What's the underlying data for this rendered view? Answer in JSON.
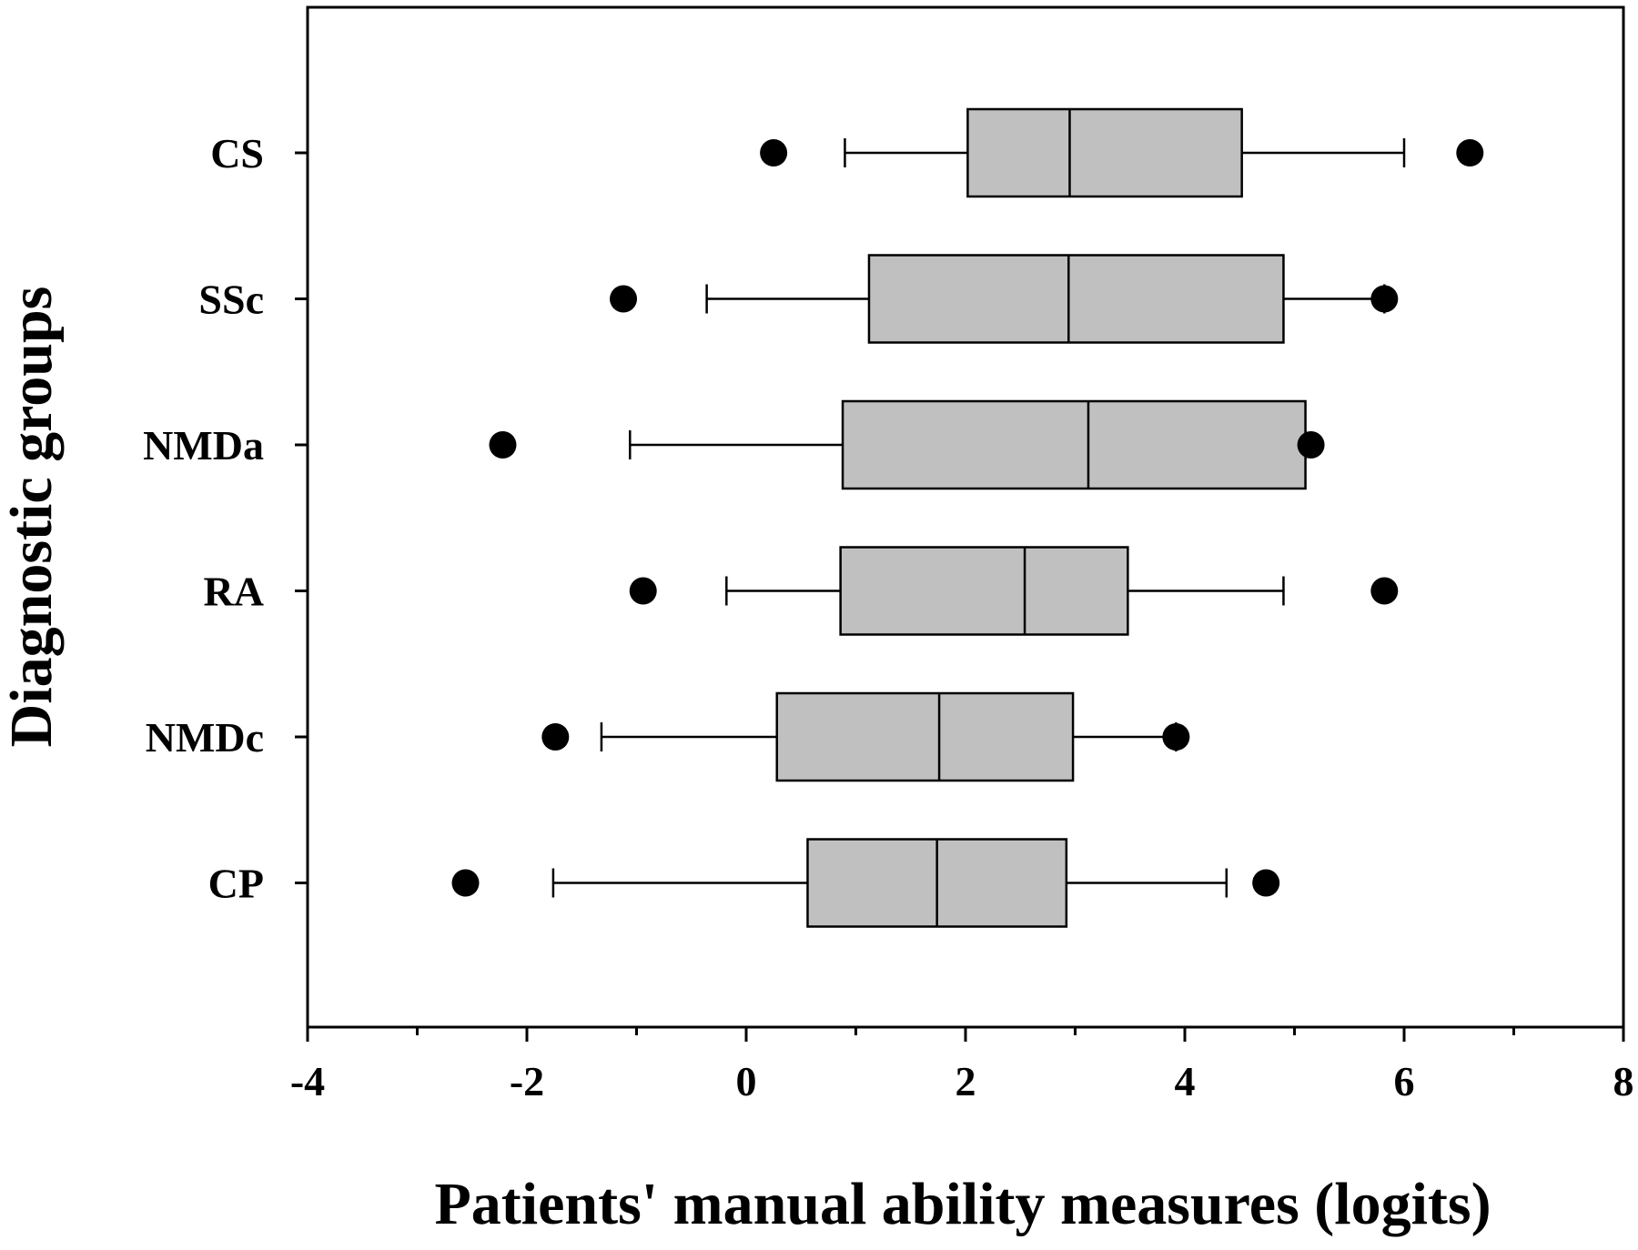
{
  "chart_data": {
    "type": "boxplot",
    "orientation": "horizontal",
    "xlabel": "Patients' manual ability measures (logits)",
    "ylabel": "Diagnostic groups",
    "xlim": [
      -4,
      8
    ],
    "x_ticks": [
      -4,
      -2,
      0,
      2,
      4,
      6,
      8
    ],
    "x_minor_ticks": [
      -3,
      -1,
      1,
      3,
      5,
      7
    ],
    "grid": false,
    "legend": "none",
    "colors": {
      "box_fill": "#c0c0c0",
      "stroke": "#000000",
      "outlier": "#000000"
    },
    "groups": [
      {
        "label": "CS",
        "whisker_low": 0.9,
        "q1": 2.02,
        "median": 2.95,
        "q3": 4.52,
        "whisker_high": 6.0,
        "outliers": [
          0.25,
          6.6
        ]
      },
      {
        "label": "SSc",
        "whisker_low": -0.36,
        "q1": 1.12,
        "median": 2.94,
        "q3": 4.9,
        "whisker_high": 5.82,
        "outliers": [
          -1.12,
          5.82
        ]
      },
      {
        "label": "NMDa",
        "whisker_low": -1.06,
        "q1": 0.88,
        "median": 3.12,
        "q3": 5.1,
        "whisker_high": 5.1,
        "outliers": [
          -2.22,
          5.15
        ]
      },
      {
        "label": "RA",
        "whisker_low": -0.18,
        "q1": 0.86,
        "median": 2.54,
        "q3": 3.48,
        "whisker_high": 4.9,
        "outliers": [
          -0.94,
          5.82
        ]
      },
      {
        "label": "NMDc",
        "whisker_low": -1.32,
        "q1": 0.28,
        "median": 1.76,
        "q3": 2.98,
        "whisker_high": 3.92,
        "outliers": [
          -1.74,
          3.92
        ]
      },
      {
        "label": "CP",
        "whisker_low": -1.76,
        "q1": 0.56,
        "median": 1.74,
        "q3": 2.92,
        "whisker_high": 4.38,
        "outliers": [
          -2.56,
          4.74
        ]
      }
    ]
  }
}
